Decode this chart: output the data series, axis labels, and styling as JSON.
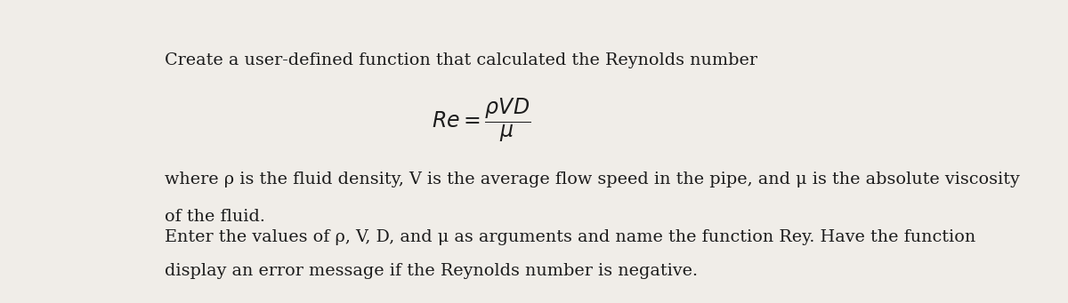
{
  "bg_color": "#f0ede8",
  "text_color": "#1c1c1c",
  "line1": "Create a user-defined function that calculated the Reynolds number",
  "line3": "where ρ is the fluid density, V is the average flow speed in the pipe, and μ is the absolute viscosity",
  "line4": "of the fluid.",
  "line5": "Enter the values of ρ, V, D, and μ as arguments and name the function Rey. Have the function",
  "line6": "display an error message if the Reynolds number is negative.",
  "formula_text": "$\\mathit{Re} = \\dfrac{\\rho VD}{\\mu}$",
  "fontsize_main": 13.8,
  "fontsize_formula": 17,
  "fontfamily": "DejaVu Serif"
}
